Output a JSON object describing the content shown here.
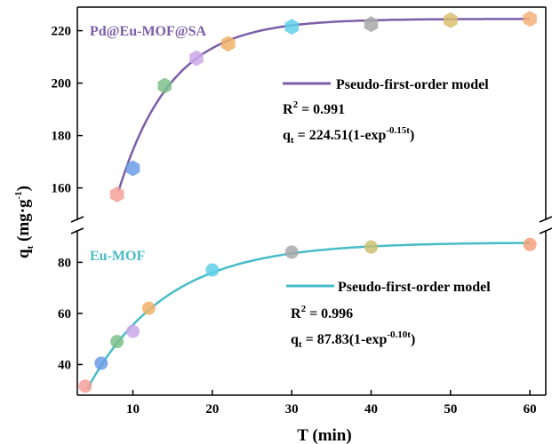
{
  "chart_data": {
    "type": "scatter",
    "xlabel": "T (min)",
    "ylabel": "q",
    "ylabel_sub": "t",
    "ylabel_unit": " (mg·g",
    "ylabel_unit_sup": "-1",
    "ylabel_unit_end": ")",
    "xlim": [
      3,
      62
    ],
    "xticks": [
      10,
      20,
      30,
      40,
      50,
      60
    ],
    "grid": false,
    "broken_y_axis": true,
    "panels": [
      {
        "name": "Pd@Eu-MOF@SA",
        "color": "#7b5ea7",
        "ylim": [
          147,
          229
        ],
        "yticks": [
          160,
          180,
          200,
          220
        ],
        "points": [
          {
            "x": 8,
            "y": 157.5,
            "color": "#f4a09a"
          },
          {
            "x": 10,
            "y": 167.5,
            "color": "#6a9ee8"
          },
          {
            "x": 14,
            "y": 199.0,
            "color": "#7dc08a"
          },
          {
            "x": 18,
            "y": 209.5,
            "color": "#c9a8e8"
          },
          {
            "x": 22,
            "y": 215.0,
            "color": "#f0b368"
          },
          {
            "x": 30,
            "y": 221.5,
            "color": "#5fd0e8"
          },
          {
            "x": 40,
            "y": 222.5,
            "color": "#a8a8a8"
          },
          {
            "x": 50,
            "y": 224.0,
            "color": "#d9c070"
          },
          {
            "x": 60,
            "y": 224.5,
            "color": "#f5b07a"
          }
        ],
        "model": {
          "qe": 224.51,
          "k": 0.15,
          "x_start": 8.2,
          "x_end": 60
        },
        "legend_label": "Pseudo-first-order model",
        "r2_prefix": "R",
        "r2_sup": "2",
        "r2_value": " = 0.991",
        "eq_q": "q",
        "eq_sub": "t",
        "eq_body": " = 224.51(1-exp",
        "eq_sup": "-0.15t",
        "eq_end": ")"
      },
      {
        "name": "Eu-MOF",
        "color": "#47bcc8",
        "ylim": [
          28,
          93
        ],
        "yticks": [
          40,
          60,
          80
        ],
        "points": [
          {
            "x": 4,
            "y": 31.5,
            "color": "#f4a09a"
          },
          {
            "x": 6,
            "y": 40.5,
            "color": "#6a9ee8"
          },
          {
            "x": 8,
            "y": 49.0,
            "color": "#7dc08a"
          },
          {
            "x": 10,
            "y": 53.0,
            "color": "#c9a8e8"
          },
          {
            "x": 12,
            "y": 62.0,
            "color": "#f0b368"
          },
          {
            "x": 20,
            "y": 77.0,
            "color": "#5fd0e8"
          },
          {
            "x": 30,
            "y": 84.0,
            "color": "#a8a8a8"
          },
          {
            "x": 40,
            "y": 86.0,
            "color": "#c9c070"
          },
          {
            "x": 60,
            "y": 87.0,
            "color": "#f5a07a"
          }
        ],
        "model": {
          "qe": 87.83,
          "k": 0.1,
          "x_start": 3.8,
          "x_end": 60
        },
        "legend_label": "Pseudo-first-order model",
        "r2_prefix": "R",
        "r2_sup": "2",
        "r2_value": " = 0.996",
        "eq_q": "q",
        "eq_sub": "t",
        "eq_body": " = 87.83(1-exp",
        "eq_sup": "-0.10t",
        "eq_end": ")"
      }
    ]
  }
}
